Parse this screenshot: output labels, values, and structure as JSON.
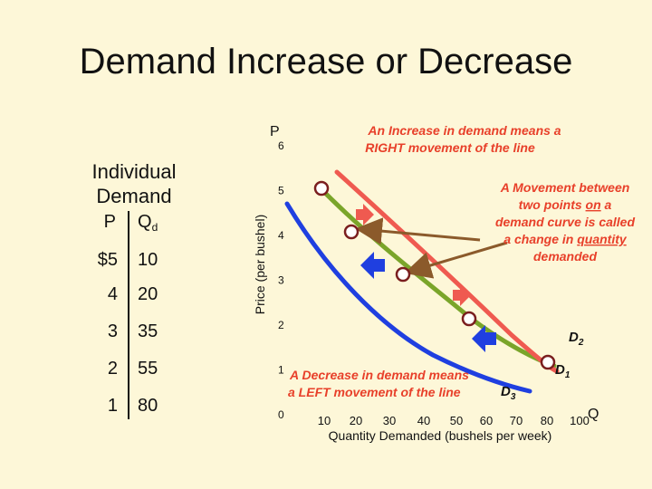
{
  "title": "Demand Increase or Decrease",
  "table": {
    "heading_line1": "Individual",
    "heading_line2": "Demand",
    "col_price": "P",
    "col_qty": "Q",
    "col_qty_sub": "d",
    "rows": [
      {
        "price": "$5",
        "qty": "10"
      },
      {
        "price": "4",
        "qty": "20"
      },
      {
        "price": "3",
        "qty": "35"
      },
      {
        "price": "2",
        "qty": "55"
      },
      {
        "price": "1",
        "qty": "80"
      }
    ]
  },
  "chart_data": {
    "type": "line",
    "title": "",
    "xlabel": "Quantity Demanded (bushels per week)",
    "ylabel": "Price (per bushel)",
    "x_axis_letter": "Q",
    "y_axis_letter": "P",
    "x_ticks": [
      "10",
      "20",
      "30",
      "40",
      "50",
      "60",
      "70",
      "80",
      "100"
    ],
    "y_ticks": [
      "0",
      "1",
      "2",
      "3",
      "4",
      "5",
      "6"
    ],
    "ylim": [
      0,
      6
    ],
    "series": [
      {
        "name": "D",
        "name_sub": "1",
        "color": "#7aa52a",
        "x": [
          10,
          20,
          35,
          55,
          80
        ],
        "y": [
          5,
          4,
          3,
          2,
          1
        ]
      },
      {
        "name": "D",
        "name_sub": "2",
        "color": "#ef5a50",
        "x": [
          20,
          30,
          45,
          65,
          90
        ],
        "y": [
          5,
          4,
          3,
          2,
          1
        ]
      },
      {
        "name": "D",
        "name_sub": "3",
        "color": "#1f3fe0",
        "x": [
          0,
          10,
          25,
          45,
          70
        ],
        "y": [
          5,
          4,
          3,
          2,
          1
        ]
      }
    ],
    "annotations": {
      "increase_line1": "An Increase in demand means a",
      "increase_line2": "RIGHT movement of the line",
      "movement_line1": "A Movement between",
      "movement_line2_pre": "two points ",
      "movement_line2_u": "on",
      "movement_line2_post": " a",
      "movement_line3": "demand curve is called",
      "movement_line4_pre": "a change in ",
      "movement_line4_u": "quantity",
      "movement_line5": "demanded",
      "decrease_line1": "A Decrease in demand means",
      "decrease_line2": "a LEFT movement of the line"
    },
    "colors": {
      "background": "#fdf7d8",
      "annotation_text": "#e8402a",
      "pointer_arrow": "#8b5a2b",
      "right_arrow": "#ef5a50",
      "left_arrow": "#1f3fe0"
    }
  }
}
